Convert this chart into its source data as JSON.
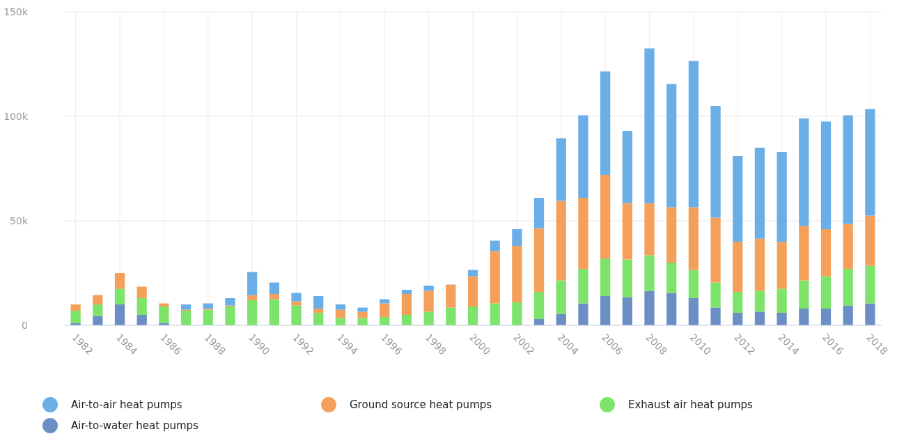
{
  "chart_data": {
    "type": "bar",
    "stacked": true,
    "categories": [
      "1982",
      null,
      "1984",
      null,
      "1986",
      null,
      "1988",
      null,
      "1990",
      null,
      "1992",
      null,
      "1994",
      null,
      "1996",
      null,
      "1998",
      null,
      "2000",
      null,
      "2002",
      null,
      "2004",
      null,
      "2006",
      null,
      "2008",
      null,
      "2010",
      null,
      "2012",
      null,
      "2014",
      null,
      "2016",
      null,
      "2018"
    ],
    "series": [
      {
        "name": "Air-to-water heat pumps",
        "color": "#6b8fc4",
        "values": [
          1000,
          4500,
          10000,
          5000,
          1000,
          0,
          0,
          0,
          0,
          0,
          0,
          0,
          0,
          0,
          0,
          0,
          0,
          0,
          0,
          0,
          0,
          3000,
          5500,
          10500,
          14000,
          13500,
          16500,
          15500,
          13000,
          8500,
          6000,
          6500,
          6000,
          8000,
          8000,
          9500,
          10500
        ]
      },
      {
        "name": "Exhaust air heat pumps",
        "color": "#7ee36a",
        "values": [
          6000,
          5500,
          7500,
          8000,
          8000,
          7000,
          7500,
          9000,
          12000,
          12500,
          9500,
          6000,
          3500,
          3500,
          4000,
          5000,
          6500,
          8500,
          9000,
          10500,
          11000,
          13000,
          16000,
          16500,
          18000,
          18000,
          17000,
          14500,
          13500,
          12000,
          10000,
          10000,
          11500,
          13500,
          15500,
          17500,
          18000
        ]
      },
      {
        "name": "Ground source heat pumps",
        "color": "#f5a05a",
        "values": [
          3000,
          4500,
          7500,
          5500,
          1500,
          500,
          500,
          500,
          2500,
          2500,
          2000,
          2000,
          4000,
          3000,
          6500,
          10000,
          10000,
          11000,
          14500,
          25000,
          27000,
          30500,
          38000,
          34000,
          40000,
          27000,
          25000,
          26500,
          30000,
          31000,
          24000,
          25000,
          22500,
          26000,
          22500,
          21500,
          24000
        ]
      },
      {
        "name": "Air-to-air heat pumps",
        "color": "#6aaee8",
        "values": [
          0,
          0,
          0,
          0,
          0,
          2500,
          2500,
          3500,
          11000,
          5500,
          4000,
          6000,
          2500,
          2000,
          2000,
          2000,
          2500,
          0,
          3000,
          5000,
          8000,
          14500,
          30000,
          39500,
          49500,
          34500,
          74000,
          59000,
          70000,
          53500,
          41000,
          43500,
          43000,
          51500,
          51500,
          52000,
          51000
        ]
      }
    ],
    "ylim": [
      0,
      150000
    ],
    "yticks": [
      {
        "value": 0,
        "label": "0"
      },
      {
        "value": 50000,
        "label": "50k"
      },
      {
        "value": 100000,
        "label": "100k"
      },
      {
        "value": 150000,
        "label": "150k"
      }
    ],
    "grid": true,
    "legend": "bottom"
  }
}
